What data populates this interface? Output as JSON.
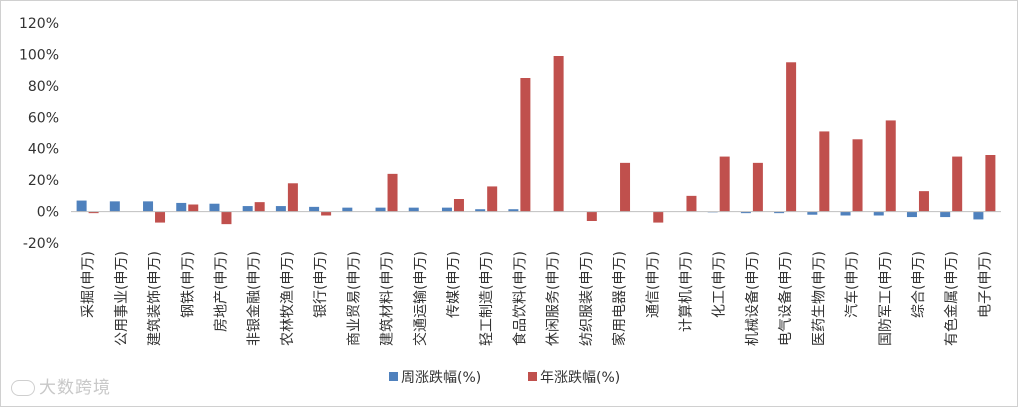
{
  "chart_data": {
    "type": "bar",
    "categories": [
      "采掘(申万)",
      "公用事业(申万)",
      "建筑装饰(申万)",
      "钢铁(申万)",
      "房地产(申万)",
      "非银金融(申万)",
      "农林牧渔(申万)",
      "银行(申万)",
      "商业贸易(申万)",
      "建筑材料(申万)",
      "交通运输(申万)",
      "传媒(申万)",
      "轻工制造(申万)",
      "食品饮料(申万)",
      "休闲服务(申万)",
      "纺织服装(申万)",
      "家用电器(申万)",
      "通信(申万)",
      "计算机(申万)",
      "化工(申万)",
      "机械设备(申万)",
      "电气设备(申万)",
      "医药生物(申万)",
      "汽车(申万)",
      "国防军工(申万)",
      "综合(申万)",
      "有色金属(申万)",
      "电子(申万)"
    ],
    "series": [
      {
        "name": "周涨跌幅(%)",
        "color": "#4f81bd",
        "values": [
          7,
          6.5,
          6.5,
          5.5,
          5,
          3.5,
          3.5,
          3,
          2.5,
          2.5,
          2.5,
          2.5,
          1.5,
          1.5,
          0,
          0,
          0,
          0,
          0,
          -0.5,
          -1,
          -1,
          -2,
          -2.5,
          -2.5,
          -3.5,
          -3.5,
          -5
        ]
      },
      {
        "name": "年涨跌幅(%)",
        "color": "#c0504d",
        "values": [
          -1,
          0,
          -7,
          4.5,
          -8,
          6,
          18,
          -2.5,
          0,
          24,
          0,
          8,
          16,
          85,
          99,
          -6,
          31,
          -7,
          10,
          35,
          31,
          95,
          51,
          46,
          58,
          13,
          35,
          36
        ]
      }
    ],
    "yticks": [
      "120%",
      "100%",
      "80%",
      "60%",
      "40%",
      "20%",
      "0%",
      "-20%"
    ],
    "ylim": [
      -20,
      120
    ],
    "grid": false,
    "legend_position": "bottom"
  },
  "watermark": {
    "text": "大数跨境"
  }
}
